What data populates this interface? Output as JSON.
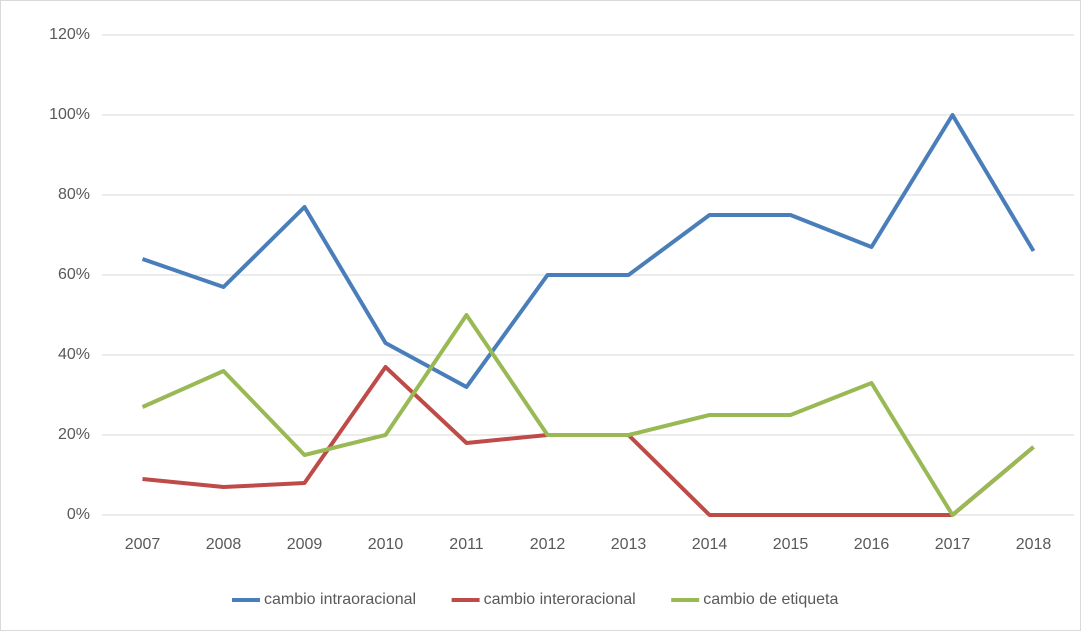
{
  "chart_data": {
    "type": "line",
    "categories": [
      "2007",
      "2008",
      "2009",
      "2010",
      "2011",
      "2012",
      "2013",
      "2014",
      "2015",
      "2016",
      "2017",
      "2018"
    ],
    "series": [
      {
        "name": "cambio intraoracional",
        "color": "#4a7ebb",
        "values": [
          64,
          57,
          77,
          43,
          32,
          60,
          60,
          75,
          75,
          67,
          100,
          66
        ]
      },
      {
        "name": "cambio interoracional",
        "color": "#be4b48",
        "values": [
          9,
          7,
          8,
          37,
          18,
          20,
          20,
          0,
          0,
          0,
          0,
          17
        ]
      },
      {
        "name": "cambio de etiqueta",
        "color": "#98b954",
        "values": [
          27,
          36,
          15,
          20,
          50,
          20,
          20,
          25,
          25,
          33,
          0,
          17
        ]
      }
    ],
    "ylim": [
      0,
      120
    ],
    "yticks": [
      {
        "value": 0,
        "label": "0%"
      },
      {
        "value": 20,
        "label": "20%"
      },
      {
        "value": 40,
        "label": "40%"
      },
      {
        "value": 60,
        "label": "60%"
      },
      {
        "value": 80,
        "label": "80%"
      },
      {
        "value": 100,
        "label": "100%"
      },
      {
        "value": 120,
        "label": "120%"
      }
    ],
    "grid": true,
    "legend": "bottom"
  }
}
